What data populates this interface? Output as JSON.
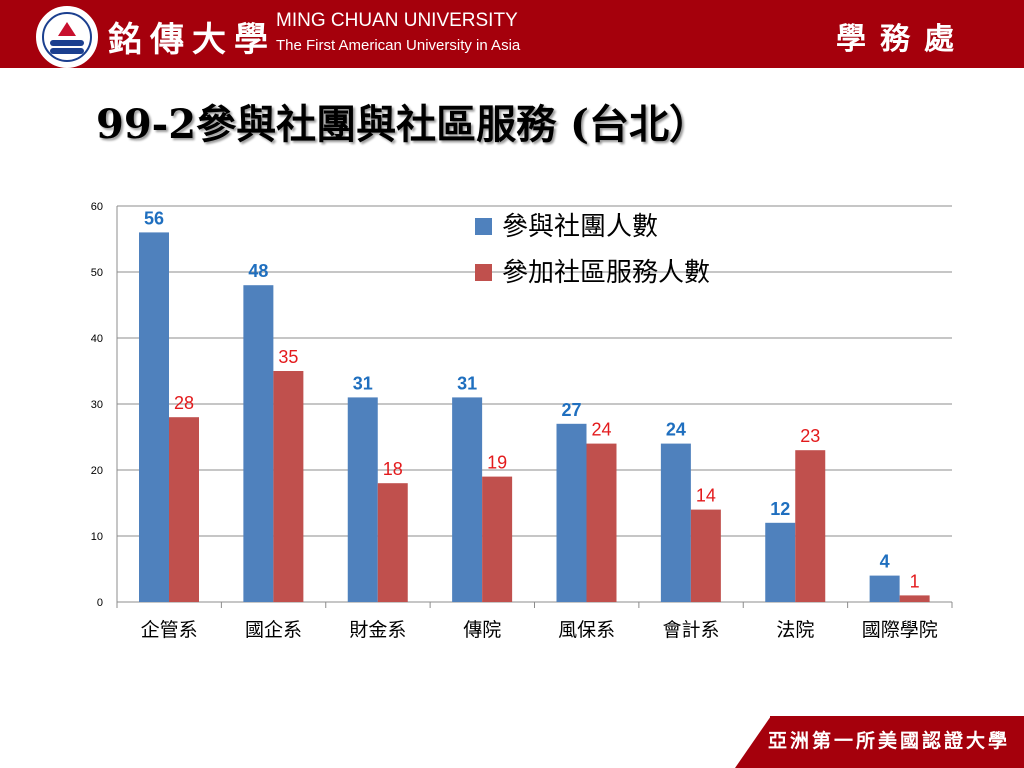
{
  "header": {
    "university_cn": "銘傳大學",
    "university_en": "MING CHUAN UNIVERSITY",
    "tagline": "The First American University in Asia",
    "department": "學務處"
  },
  "slide": {
    "title": "99-2參與社團與社區服務 (台北）"
  },
  "footer": {
    "slogan": "亞洲第一所美國認證大學"
  },
  "colors": {
    "header_bg": "#a5000c",
    "series_1": "#4f81bd",
    "series_2": "#c0504d",
    "label_1": "#1f6fbf",
    "label_2": "#e31a1c"
  },
  "chart_data": {
    "type": "bar",
    "categories": [
      "企管系",
      "國企系",
      "財金系",
      "傳院",
      "風保系",
      "會計系",
      "法院",
      "國際學院"
    ],
    "series": [
      {
        "name": "參與社團人數",
        "values": [
          56,
          48,
          31,
          31,
          27,
          24,
          12,
          4
        ]
      },
      {
        "name": "參加社區服務人數",
        "values": [
          28,
          35,
          18,
          19,
          24,
          14,
          23,
          1
        ]
      }
    ],
    "ylim": [
      0,
      60
    ],
    "yticks": [
      0,
      10,
      20,
      30,
      40,
      50,
      60
    ],
    "grid": true,
    "legend": "top-right",
    "data_labels": true
  }
}
